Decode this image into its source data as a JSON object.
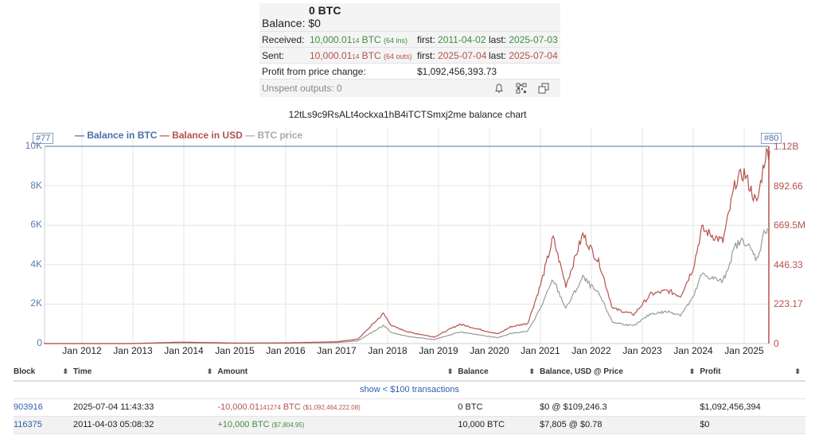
{
  "summary": {
    "balance_label": "Balance:",
    "balance_btc": "0 BTC",
    "balance_usd": "$0",
    "received": {
      "label": "Received:",
      "amount_main": "10,000.01",
      "amount_small": "14",
      "amount_unit": " BTC",
      "count": "(64 ins)",
      "first_label": "first:",
      "first_date": "2011-04-02",
      "last_label": "last:",
      "last_date": "2025-07-03"
    },
    "sent": {
      "label": "Sent:",
      "amount_main": "10,000.01",
      "amount_small": "14",
      "amount_unit": " BTC",
      "count": "(64 outs)",
      "first_label": "first:",
      "first_date": "2025-07-04",
      "last_label": "last:",
      "last_date": "2025-07-04"
    },
    "profit_label": "Profit from price change:",
    "profit_value": "$1,092,456,393.73",
    "unspent": "Unspent outputs: 0",
    "icons": [
      "bell-icon",
      "qr-code-icon",
      "copy-icon"
    ]
  },
  "chart_data": {
    "type": "line",
    "title": "12tLs9c9RsALt4ockxa1hB4iTCTSmxj2me balance chart",
    "legend": [
      "Balance in BTC",
      "Balance in USD",
      "BTC price"
    ],
    "legend_colors": {
      "Balance in BTC": "#4b6fa8",
      "Balance in USD": "#b5514c",
      "BTC price": "#aaaaaa"
    },
    "flags": {
      "left": "#77",
      "right": "#80"
    },
    "y_left": {
      "label": "BTC",
      "ticks": [
        "0",
        "2K",
        "4K",
        "6K",
        "8K",
        "10K"
      ],
      "range": [
        0,
        10000
      ]
    },
    "y_right": {
      "label": "USD",
      "ticks": [
        "0",
        "223.17",
        "446.33",
        "669.5M",
        "892.66",
        "1.12B"
      ],
      "range": [
        0,
        1120000000
      ]
    },
    "x_ticks": [
      "Jan 2012",
      "Jan 2013",
      "Jan 2014",
      "Jan 2015",
      "Jan 2016",
      "Jan 2017",
      "Jan 2018",
      "Jan 2019",
      "Jan 2020",
      "Jan 2021",
      "Jan 2022",
      "Jan 2023",
      "Jan 2024",
      "Jan 2025"
    ],
    "x": [
      "2011-04",
      "2012-01",
      "2013-01",
      "2013-12",
      "2014-06",
      "2015-01",
      "2016-01",
      "2017-01",
      "2017-06",
      "2017-12",
      "2018-02",
      "2018-06",
      "2018-12",
      "2019-06",
      "2019-12",
      "2020-03",
      "2020-06",
      "2020-10",
      "2021-01",
      "2021-04",
      "2021-07",
      "2021-11",
      "2022-03",
      "2022-06",
      "2022-11",
      "2023-03",
      "2023-07",
      "2023-10",
      "2024-01",
      "2024-03",
      "2024-08",
      "2024-11",
      "2025-01",
      "2025-04",
      "2025-06",
      "2025-07"
    ],
    "series": [
      {
        "name": "Balance in BTC",
        "values": [
          10000,
          10000,
          10000,
          10000,
          10000,
          10000,
          10000,
          10000,
          10000,
          10000,
          10000,
          10000,
          10000,
          10000,
          10000,
          10000,
          10000,
          10000,
          10000,
          10000,
          10000,
          10000,
          10000,
          10000,
          10000,
          10000,
          10000,
          10000,
          10000,
          10000,
          10000,
          10000,
          10000,
          10000,
          10000,
          10000
        ]
      },
      {
        "name": "Balance in USD",
        "values": [
          7805,
          50000,
          130000,
          8000000,
          6000000,
          3000000,
          4000000,
          10000000,
          25000000,
          170000000,
          100000000,
          65000000,
          37000000,
          110000000,
          72000000,
          55000000,
          95000000,
          115000000,
          330000000,
          600000000,
          330000000,
          620000000,
          450000000,
          200000000,
          165000000,
          280000000,
          300000000,
          270000000,
          430000000,
          650000000,
          580000000,
          920000000,
          970000000,
          790000000,
          1070000000,
          1092464222
        ]
      },
      {
        "name": "BTC price",
        "values": [
          0.78,
          5,
          13,
          800,
          600,
          300,
          400,
          1000,
          2500,
          17000,
          10000,
          6500,
          3700,
          11000,
          7200,
          5500,
          9500,
          11500,
          33000,
          60000,
          33000,
          62000,
          45000,
          20000,
          16500,
          28000,
          30000,
          27000,
          43000,
          65000,
          58000,
          92000,
          97000,
          79000,
          107000,
          109246.3
        ]
      }
    ],
    "grid": true
  },
  "table": {
    "headers": [
      "Block",
      "Time",
      "Amount",
      "Balance",
      "Balance, USD @ Price",
      "Profit"
    ],
    "show_small": "show < $100 transactions",
    "rows": [
      {
        "block": "903916",
        "time": "2025-07-04 11:43:33",
        "amount_main": "-10,000.01",
        "amount_small": "141274",
        "amount_unit": " BTC",
        "amount_usd": "($1,092,464,222.08)",
        "balance": "0 BTC",
        "balance_usd": "$0 @ $109,246.3",
        "profit": "$1,092,456,394",
        "direction": "out"
      },
      {
        "block": "116375",
        "time": "2011-04-03 05:08:32",
        "amount_main": "+10,000",
        "amount_small": "",
        "amount_unit": " BTC",
        "amount_usd": "($7,804.95)",
        "balance": "10,000 BTC",
        "balance_usd": "$7,805 @ $0.78",
        "profit": "$0",
        "direction": "in"
      }
    ]
  }
}
